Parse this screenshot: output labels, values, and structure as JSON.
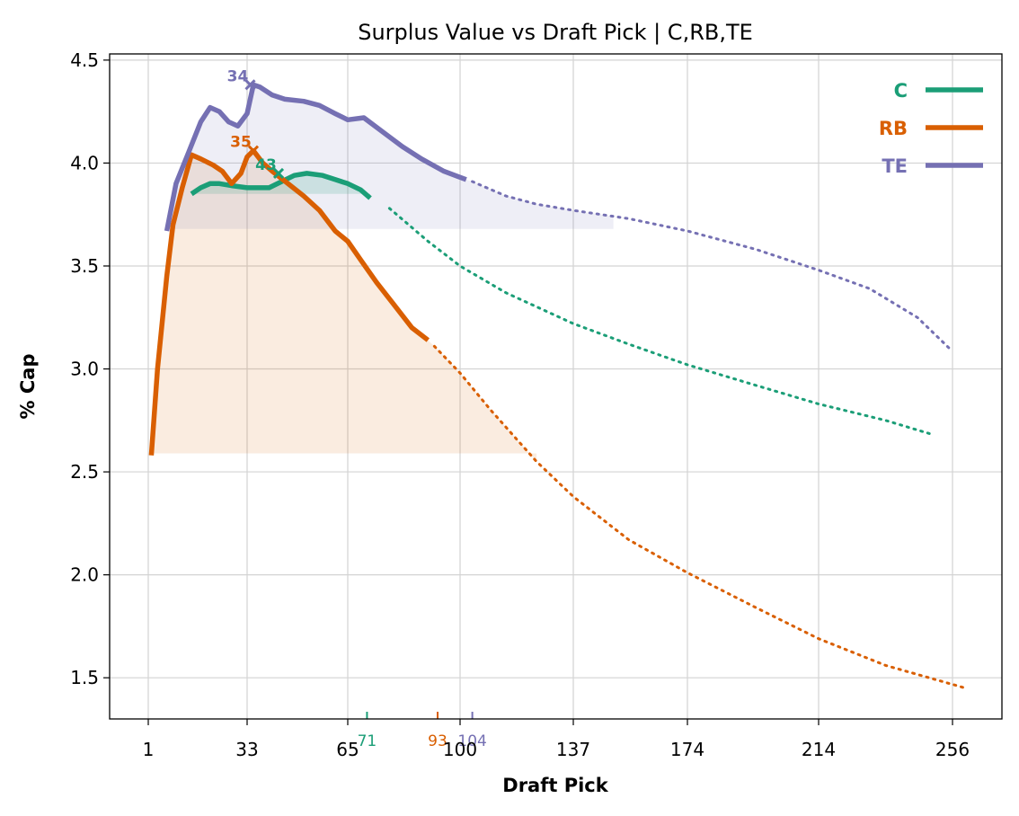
{
  "chart_data": {
    "type": "line",
    "title": "Surplus Value vs Draft Pick | C,RB,TE",
    "xlabel": "Draft Pick",
    "ylabel": "% Cap",
    "xlim": [
      -11,
      275
    ],
    "ylim": [
      1.3,
      4.53
    ],
    "x_scale": "custom (tick-label breakpoints piecewise-spaced)",
    "x_ticks": [
      1,
      33,
      65,
      100,
      137,
      174,
      214,
      256
    ],
    "y_ticks": [
      1.5,
      2.0,
      2.5,
      3.0,
      3.5,
      4.0,
      4.5
    ],
    "grid": true,
    "legend_position": "top-right",
    "series": [
      {
        "name": "C",
        "color": "#1b9e77",
        "solid": [
          [
            15,
            3.85
          ],
          [
            18,
            3.88
          ],
          [
            21,
            3.9
          ],
          [
            24,
            3.9
          ],
          [
            28,
            3.89
          ],
          [
            33,
            3.88
          ],
          [
            40,
            3.88
          ],
          [
            44,
            3.91
          ],
          [
            48,
            3.94
          ],
          [
            52,
            3.95
          ],
          [
            57,
            3.94
          ],
          [
            61,
            3.92
          ],
          [
            65,
            3.9
          ],
          [
            69,
            3.87
          ],
          [
            72,
            3.83
          ]
        ],
        "dotted": [
          [
            78,
            3.78
          ],
          [
            90,
            3.62
          ],
          [
            100,
            3.5
          ],
          [
            115,
            3.37
          ],
          [
            137,
            3.22
          ],
          [
            155,
            3.12
          ],
          [
            174,
            3.02
          ],
          [
            195,
            2.92
          ],
          [
            214,
            2.83
          ],
          [
            235,
            2.75
          ],
          [
            250,
            2.68
          ]
        ],
        "peak": {
          "x": 43,
          "y": 3.95,
          "label": "43"
        },
        "fill_base": 3.85,
        "fill_range": [
          15,
          72
        ],
        "rug_x": 71,
        "rug_label": "71"
      },
      {
        "name": "RB",
        "color": "#d95f02",
        "solid": [
          [
            2,
            2.58
          ],
          [
            4,
            3.0
          ],
          [
            7,
            3.45
          ],
          [
            9,
            3.7
          ],
          [
            12,
            3.88
          ],
          [
            15,
            4.04
          ],
          [
            18,
            4.02
          ],
          [
            22,
            3.99
          ],
          [
            25,
            3.96
          ],
          [
            28,
            3.9
          ],
          [
            31,
            3.95
          ],
          [
            33,
            4.03
          ],
          [
            35,
            4.06
          ],
          [
            38,
            4.0
          ],
          [
            41,
            3.96
          ],
          [
            46,
            3.9
          ],
          [
            51,
            3.84
          ],
          [
            56,
            3.77
          ],
          [
            61,
            3.67
          ],
          [
            65,
            3.62
          ],
          [
            69,
            3.53
          ],
          [
            74,
            3.42
          ],
          [
            79,
            3.32
          ],
          [
            85,
            3.2
          ],
          [
            90,
            3.14
          ]
        ],
        "dotted": [
          [
            92,
            3.11
          ],
          [
            100,
            2.98
          ],
          [
            110,
            2.8
          ],
          [
            125,
            2.55
          ],
          [
            137,
            2.38
          ],
          [
            155,
            2.17
          ],
          [
            174,
            2.01
          ],
          [
            195,
            1.84
          ],
          [
            214,
            1.69
          ],
          [
            235,
            1.56
          ],
          [
            260,
            1.45
          ]
        ],
        "peak": {
          "x": 35,
          "y": 4.06,
          "label": "35"
        },
        "fill_base": 2.59,
        "fill_range": [
          2,
          125
        ],
        "rug_x": 93,
        "rug_label": "93"
      },
      {
        "name": "TE",
        "color": "#7570b3",
        "solid": [
          [
            7,
            3.67
          ],
          [
            10,
            3.9
          ],
          [
            14,
            4.05
          ],
          [
            18,
            4.2
          ],
          [
            21,
            4.27
          ],
          [
            24,
            4.25
          ],
          [
            27,
            4.2
          ],
          [
            30,
            4.18
          ],
          [
            33,
            4.24
          ],
          [
            35,
            4.38
          ],
          [
            37,
            4.37
          ],
          [
            41,
            4.33
          ],
          [
            45,
            4.31
          ],
          [
            51,
            4.3
          ],
          [
            56,
            4.28
          ],
          [
            61,
            4.24
          ],
          [
            65,
            4.21
          ],
          [
            70,
            4.22
          ],
          [
            76,
            4.15
          ],
          [
            82,
            4.08
          ],
          [
            88,
            4.02
          ],
          [
            95,
            3.96
          ],
          [
            102,
            3.92
          ]
        ],
        "dotted": [
          [
            104,
            3.91
          ],
          [
            115,
            3.84
          ],
          [
            125,
            3.8
          ],
          [
            137,
            3.77
          ],
          [
            155,
            3.73
          ],
          [
            174,
            3.67
          ],
          [
            195,
            3.58
          ],
          [
            214,
            3.48
          ],
          [
            230,
            3.39
          ],
          [
            245,
            3.25
          ],
          [
            255,
            3.1
          ]
        ],
        "peak": {
          "x": 34,
          "y": 4.38,
          "label": "34"
        },
        "fill_base": 3.68,
        "fill_range": [
          7,
          150
        ],
        "rug_x": 104,
        "rug_label": "104"
      }
    ]
  }
}
